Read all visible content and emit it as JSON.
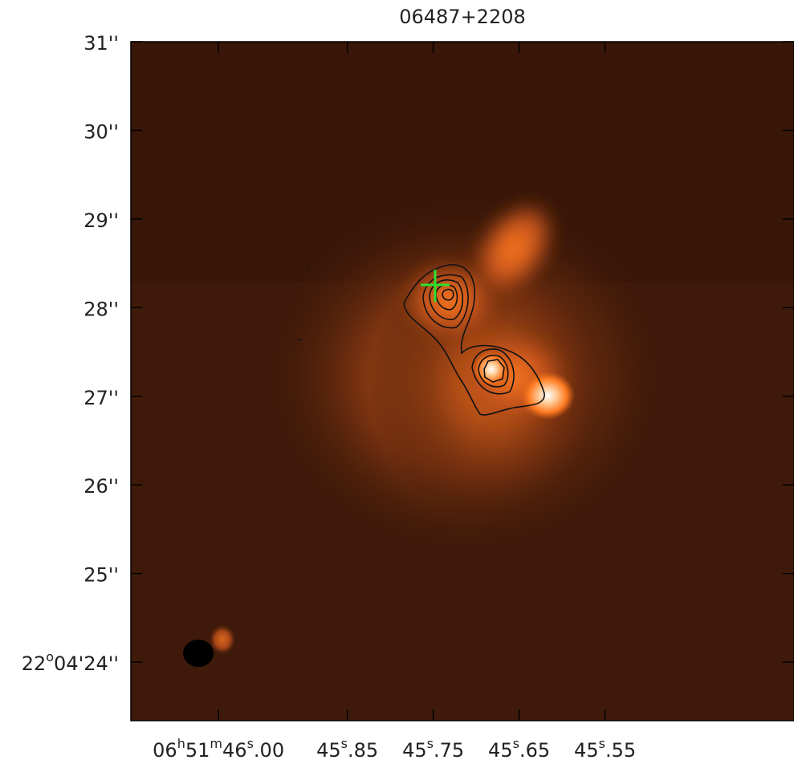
{
  "chart_data": {
    "type": "image",
    "title": "06487+2208",
    "xlim": [
      46.102,
      45.33
    ],
    "xticks": [
      {
        "value": 46.0,
        "label": "06h51m46s.00"
      },
      {
        "value": 45.85,
        "label": "45s.85"
      },
      {
        "value": 45.75,
        "label": "45s.75"
      },
      {
        "value": 45.65,
        "label": "45s.65"
      },
      {
        "value": 45.55,
        "label": "45s.55"
      }
    ],
    "ylim": [
      23.34,
      31
    ],
    "yticks": [
      {
        "value": 24,
        "label": "22o04'24''"
      },
      {
        "value": 25,
        "label": "25''"
      },
      {
        "value": 26,
        "label": "26''"
      },
      {
        "value": 27,
        "label": "27''"
      },
      {
        "value": 28,
        "label": "28''"
      },
      {
        "value": 29,
        "label": "29''"
      },
      {
        "value": 30,
        "label": "30''"
      },
      {
        "value": 31,
        "label": "31''"
      }
    ]
  }
}
